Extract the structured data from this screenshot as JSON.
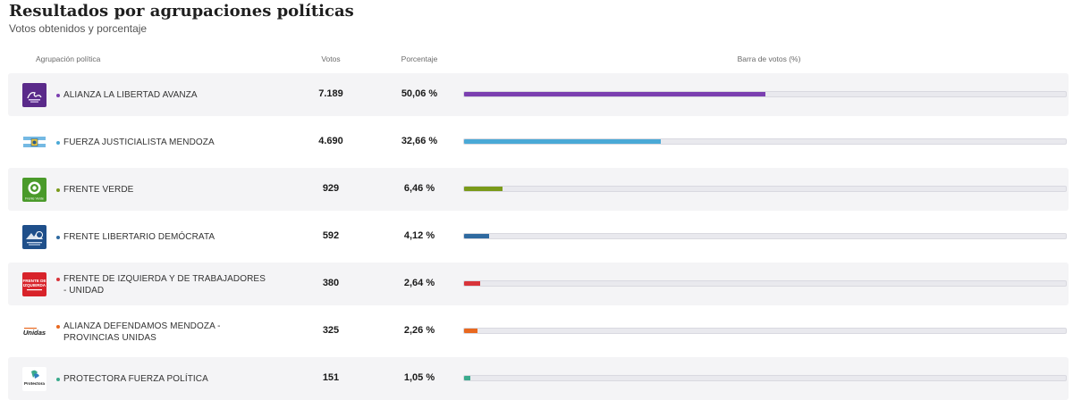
{
  "header": {
    "title": "Resultados por agrupaciones políticas",
    "subtitle": "Votos obtenidos y porcentaje"
  },
  "columns": {
    "party": "Agrupación política",
    "votes": "Votos",
    "percent": "Porcentaje",
    "bar": "Barra de votos (%)"
  },
  "chart_data": {
    "type": "bar",
    "title": "Resultados por agrupaciones políticas",
    "subtitle": "Votos obtenidos y porcentaje",
    "xlabel": "Barra de votos (%)",
    "ylabel": "Agrupación política",
    "xlim": [
      0,
      100
    ],
    "orientation": "horizontal",
    "categories": [
      "ALIANZA LA LIBERTAD AVANZA",
      "FUERZA JUSTICIALISTA MENDOZA",
      "FRENTE VERDE",
      "FRENTE LIBERTARIO DEMÓCRATA",
      "FRENTE DE IZQUIERDA Y DE TRABAJADORES - UNIDAD",
      "ALIANZA DEFENDAMOS MENDOZA - PROVINCIAS UNIDAS",
      "PROTECTORA FUERZA POLÍTICA"
    ],
    "series": [
      {
        "values": [
          50.06,
          32.66,
          6.46,
          4.12,
          2.64,
          2.26,
          1.05
        ]
      }
    ],
    "rows": [
      {
        "name_lines": [
          "ALIANZA LA LIBERTAD AVANZA"
        ],
        "votes": "7.189",
        "percent_label": "50,06 %",
        "percent": 50.06,
        "color": "#7b3fb0",
        "logo_icon": "libertad-avanza-logo-icon"
      },
      {
        "name_lines": [
          "FUERZA JUSTICIALISTA MENDOZA"
        ],
        "votes": "4.690",
        "percent_label": "32,66 %",
        "percent": 32.66,
        "color": "#4aa9d6",
        "logo_icon": "fuerza-justicialista-logo-icon"
      },
      {
        "name_lines": [
          "FRENTE VERDE"
        ],
        "votes": "929",
        "percent_label": "6,46 %",
        "percent": 6.46,
        "color": "#7a9a1a",
        "logo_icon": "frente-verde-logo-icon"
      },
      {
        "name_lines": [
          "FRENTE LIBERTARIO DEMÓCRATA"
        ],
        "votes": "592",
        "percent_label": "4,12 %",
        "percent": 4.12,
        "color": "#2f6aa0",
        "logo_icon": "frente-libertario-logo-icon"
      },
      {
        "name_lines": [
          "FRENTE DE IZQUIERDA Y DE TRABAJADORES",
          "- UNIDAD"
        ],
        "votes": "380",
        "percent_label": "2,64 %",
        "percent": 2.64,
        "color": "#d8343a",
        "logo_icon": "frente-izquierda-logo-icon"
      },
      {
        "name_lines": [
          "ALIANZA DEFENDAMOS MENDOZA -",
          "PROVINCIAS UNIDAS"
        ],
        "votes": "325",
        "percent_label": "2,26 %",
        "percent": 2.26,
        "color": "#e8681f",
        "logo_icon": "provincias-unidas-logo-icon"
      },
      {
        "name_lines": [
          "PROTECTORA FUERZA POLÍTICA"
        ],
        "votes": "151",
        "percent_label": "1,05 %",
        "percent": 1.05,
        "color": "#3aaa8c",
        "logo_icon": "protectora-logo-icon"
      }
    ]
  },
  "logo_text": {
    "frente_izquierda": [
      "FRENTE DE",
      "IZQUIERDA"
    ],
    "provincias_unidas": "Unidas",
    "protectora": "Protectora",
    "frente_verde": "Frente Verde"
  }
}
